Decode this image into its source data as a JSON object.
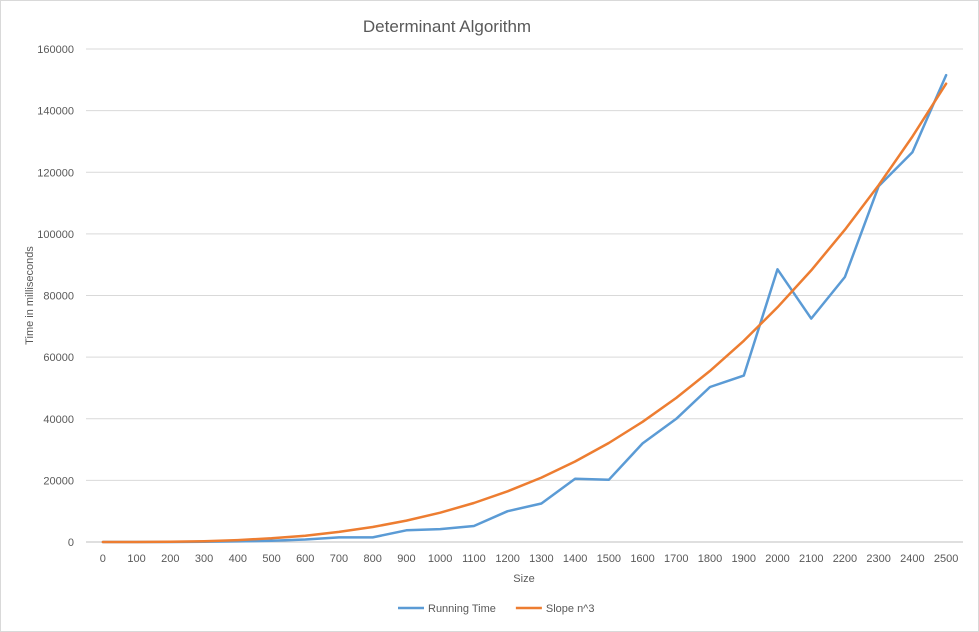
{
  "chart_data": {
    "type": "line",
    "title": "Determinant Algorithm",
    "xlabel": "Size",
    "ylabel": "Time in milliseconds",
    "x": [
      0,
      100,
      200,
      300,
      400,
      500,
      600,
      700,
      800,
      900,
      1000,
      1100,
      1200,
      1300,
      1400,
      1500,
      1600,
      1700,
      1800,
      1900,
      2000,
      2100,
      2200,
      2300,
      2400,
      2500
    ],
    "ylim": [
      0,
      160000
    ],
    "yticks": [
      0,
      20000,
      40000,
      60000,
      80000,
      100000,
      120000,
      140000,
      160000
    ],
    "grid": true,
    "legend": "bottom",
    "series": [
      {
        "name": "Running Time",
        "color": "#5b9bd5",
        "values": [
          0,
          0,
          0,
          100,
          200,
          400,
          800,
          1500,
          1500,
          3800,
          4200,
          5200,
          10000,
          12500,
          20500,
          20200,
          32000,
          40000,
          50300,
          54000,
          88500,
          72500,
          86000,
          115500,
          126500,
          151500
        ]
      },
      {
        "name": "Slope n^3",
        "color": "#ed7d31",
        "values": [
          0,
          9,
          76,
          257,
          610,
          1190,
          2056,
          3265,
          4874,
          6940,
          9520,
          12671,
          16450,
          20915,
          26122,
          32130,
          38994,
          46772,
          55522,
          65300,
          76160,
          88162,
          101362,
          115815,
          131580,
          148750
        ]
      }
    ]
  }
}
